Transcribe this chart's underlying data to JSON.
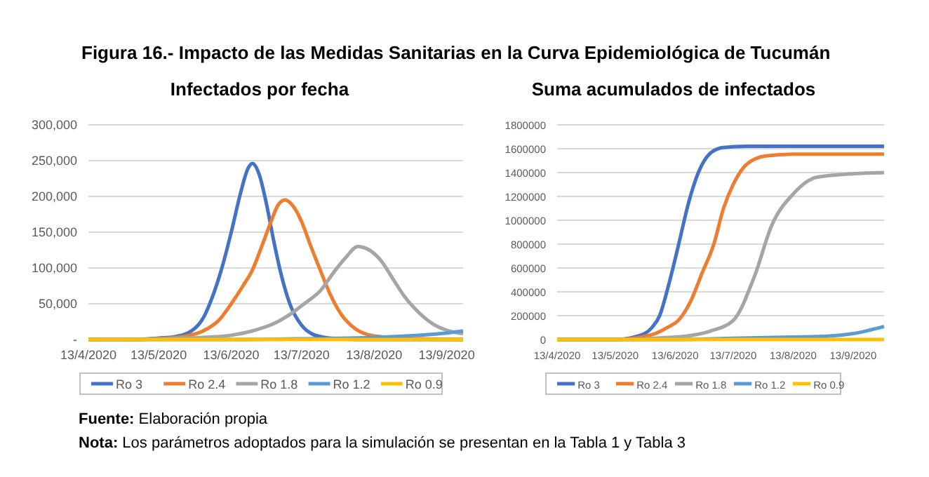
{
  "chart_data": [
    {
      "type": "line",
      "title": "Figura 16.- Impacto de las Medidas Sanitarias en la Curva Epidemiológica de Tucumán",
      "subtitle": "Infectados por fecha",
      "xlim": [
        "2020-04-13",
        "2020-09-20"
      ],
      "xticks": [
        {
          "value": "2020-04-13",
          "label": "13/4/2020"
        },
        {
          "value": "2020-05-13",
          "label": "13/5/2020"
        },
        {
          "value": "2020-06-13",
          "label": "13/6/2020"
        },
        {
          "value": "2020-07-13",
          "label": "13/7/2020"
        },
        {
          "value": "2020-08-13",
          "label": "13/8/2020"
        },
        {
          "value": "2020-09-13",
          "label": "13/9/2020"
        }
      ],
      "ylim": [
        0,
        300000
      ],
      "yticks": [
        {
          "value": 0,
          "label": "-"
        },
        {
          "value": 50000,
          "label": "50,000"
        },
        {
          "value": 100000,
          "label": "100,000"
        },
        {
          "value": 150000,
          "label": "150,000"
        },
        {
          "value": 200000,
          "label": "200,000"
        },
        {
          "value": 250000,
          "label": "250,000"
        },
        {
          "value": 300000,
          "label": "300,000"
        }
      ],
      "grid": "y",
      "legend": "bottom",
      "marker": "none",
      "line_style": "solid",
      "annotations": [
        "Fuente: Elaboración propia",
        "Nota: Los parámetros adoptados para la simulación se presentan en la Tabla 1 y Tabla 3"
      ],
      "series": [
        {
          "name": "Ro 3",
          "color": "#4472c4",
          "x": [
            "2020-04-13",
            "2020-05-01",
            "2020-05-13",
            "2020-05-20",
            "2020-05-27",
            "2020-06-01",
            "2020-06-05",
            "2020-06-09",
            "2020-06-13",
            "2020-06-17",
            "2020-06-20",
            "2020-06-22",
            "2020-06-25",
            "2020-06-28",
            "2020-07-01",
            "2020-07-04",
            "2020-07-08",
            "2020-07-13",
            "2020-07-18",
            "2020-07-25",
            "2020-08-05",
            "2020-08-20",
            "2020-09-20"
          ],
          "values": [
            0,
            0,
            2000,
            4000,
            12000,
            30000,
            60000,
            100000,
            150000,
            205000,
            238000,
            246000,
            230000,
            190000,
            140000,
            95000,
            50000,
            20000,
            7000,
            2000,
            0,
            0,
            0
          ]
        },
        {
          "name": "Ro 2.4",
          "color": "#ed7d31",
          "x": [
            "2020-04-13",
            "2020-05-01",
            "2020-05-13",
            "2020-05-25",
            "2020-06-01",
            "2020-06-08",
            "2020-06-13",
            "2020-06-18",
            "2020-06-22",
            "2020-06-26",
            "2020-06-30",
            "2020-07-03",
            "2020-07-06",
            "2020-07-09",
            "2020-07-13",
            "2020-07-17",
            "2020-07-21",
            "2020-07-25",
            "2020-07-30",
            "2020-08-05",
            "2020-08-13",
            "2020-08-25",
            "2020-09-20"
          ],
          "values": [
            0,
            0,
            1000,
            5000,
            12000,
            28000,
            50000,
            75000,
            97000,
            130000,
            165000,
            188000,
            195000,
            188000,
            165000,
            130000,
            97000,
            65000,
            35000,
            15000,
            5000,
            2000,
            0
          ]
        },
        {
          "name": "Ro 1.8",
          "color": "#a5a5a5",
          "x": [
            "2020-04-13",
            "2020-05-13",
            "2020-06-01",
            "2020-06-13",
            "2020-06-22",
            "2020-07-01",
            "2020-07-08",
            "2020-07-15",
            "2020-07-21",
            "2020-07-27",
            "2020-08-01",
            "2020-08-06",
            "2020-08-11",
            "2020-08-16",
            "2020-08-21",
            "2020-08-26",
            "2020-09-01",
            "2020-09-07",
            "2020-09-13",
            "2020-09-20"
          ],
          "values": [
            0,
            1000,
            3000,
            6000,
            12000,
            22000,
            35000,
            52000,
            68000,
            95000,
            115000,
            130000,
            125000,
            110000,
            85000,
            60000,
            38000,
            22000,
            13000,
            8000
          ]
        },
        {
          "name": "Ro 1.2",
          "color": "#5b9bd5",
          "x": [
            "2020-04-13",
            "2020-06-13",
            "2020-07-13",
            "2020-08-13",
            "2020-09-01",
            "2020-09-13",
            "2020-09-20"
          ],
          "values": [
            0,
            0,
            1000,
            3000,
            6000,
            9000,
            12000
          ]
        },
        {
          "name": "Ro 0.9",
          "color": "#ffc000",
          "x": [
            "2020-04-13",
            "2020-06-13",
            "2020-09-20"
          ],
          "values": [
            0,
            0,
            0
          ]
        }
      ]
    },
    {
      "type": "line",
      "title": "Suma acumulados de infectados",
      "xlim": [
        "2020-04-13",
        "2020-09-29"
      ],
      "xticks": [
        {
          "value": "2020-04-13",
          "label": "13/4/2020"
        },
        {
          "value": "2020-05-13",
          "label": "13/5/2020"
        },
        {
          "value": "2020-06-13",
          "label": "13/6/2020"
        },
        {
          "value": "2020-07-13",
          "label": "13/7/2020"
        },
        {
          "value": "2020-08-13",
          "label": "13/8/2020"
        },
        {
          "value": "2020-09-13",
          "label": "13/9/2020"
        }
      ],
      "ylim": [
        0,
        1800000
      ],
      "yticks": [
        0,
        200000,
        400000,
        600000,
        800000,
        1000000,
        1200000,
        1400000,
        1600000,
        1800000
      ],
      "grid": "y",
      "legend": "bottom",
      "marker": "none",
      "line_style": "solid",
      "series": [
        {
          "name": "Ro 3",
          "color": "#4472c4",
          "x": [
            "2020-04-13",
            "2020-05-13",
            "2020-05-25",
            "2020-06-01",
            "2020-06-05",
            "2020-06-10",
            "2020-06-15",
            "2020-06-20",
            "2020-06-25",
            "2020-07-01",
            "2020-07-08",
            "2020-07-20",
            "2020-09-29"
          ],
          "values": [
            0,
            0,
            30000,
            100000,
            200000,
            480000,
            810000,
            1150000,
            1400000,
            1560000,
            1610000,
            1620000,
            1620000
          ]
        },
        {
          "name": "Ro 2.4",
          "color": "#ed7d31",
          "x": [
            "2020-04-13",
            "2020-05-13",
            "2020-06-01",
            "2020-06-10",
            "2020-06-14",
            "2020-06-21",
            "2020-06-27",
            "2020-07-03",
            "2020-07-08",
            "2020-07-13",
            "2020-07-20",
            "2020-07-30",
            "2020-08-13",
            "2020-09-29"
          ],
          "values": [
            0,
            0,
            40000,
            110000,
            150000,
            320000,
            560000,
            800000,
            1100000,
            1300000,
            1470000,
            1540000,
            1555000,
            1555000
          ]
        },
        {
          "name": "Ro 1.8",
          "color": "#a5a5a5",
          "x": [
            "2020-04-13",
            "2020-05-13",
            "2020-06-13",
            "2020-07-01",
            "2020-07-13",
            "2020-07-24",
            "2020-08-02",
            "2020-08-13",
            "2020-08-25",
            "2020-09-13",
            "2020-09-29"
          ],
          "values": [
            0,
            0,
            20000,
            70000,
            160000,
            530000,
            960000,
            1220000,
            1360000,
            1390000,
            1400000
          ]
        },
        {
          "name": "Ro 1.2",
          "color": "#5b9bd5",
          "x": [
            "2020-04-13",
            "2020-06-13",
            "2020-07-13",
            "2020-08-13",
            "2020-09-01",
            "2020-09-13",
            "2020-09-29"
          ],
          "values": [
            0,
            0,
            10000,
            20000,
            30000,
            50000,
            110000
          ]
        },
        {
          "name": "Ro 0.9",
          "color": "#ffc000",
          "x": [
            "2020-04-13",
            "2020-09-29"
          ],
          "values": [
            0,
            0
          ]
        }
      ]
    }
  ]
}
